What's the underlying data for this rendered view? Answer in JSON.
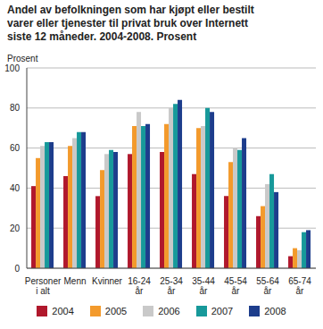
{
  "chart_data": {
    "type": "bar",
    "title": "Andel av befolkningen som har kjøpt eller bestilt varer eller tjenester til privat bruk over Internett siste 12 måneder. 2004-2008. Prosent",
    "y_label": "Prosent",
    "categories": [
      "Personer i alt",
      "Menn",
      "Kvinner",
      "16-24 år",
      "25-34 år",
      "35-44 år",
      "45-54 år",
      "55-64 år",
      "65-74 år"
    ],
    "series": [
      {
        "name": "2004",
        "color": "#b0182c",
        "values": [
          41,
          46,
          36,
          57,
          58,
          47,
          36,
          26,
          6
        ]
      },
      {
        "name": "2005",
        "color": "#f39a2c",
        "values": [
          55,
          61,
          49,
          71,
          72,
          70,
          53,
          31,
          10
        ]
      },
      {
        "name": "2006",
        "color": "#c9c9c9",
        "values": [
          61,
          65,
          57,
          78,
          80,
          71,
          60,
          42,
          9
        ]
      },
      {
        "name": "2007",
        "color": "#17999a",
        "values": [
          63,
          68,
          59,
          71,
          82,
          80,
          59,
          47,
          18
        ]
      },
      {
        "name": "2008",
        "color": "#1d3d8c",
        "values": [
          63,
          68,
          58,
          72,
          84,
          78,
          65,
          38,
          19
        ]
      }
    ],
    "ylim": [
      0,
      100
    ],
    "yticks": [
      0,
      20,
      40,
      60,
      80,
      100
    ],
    "grid": true,
    "legend": "bottom"
  }
}
